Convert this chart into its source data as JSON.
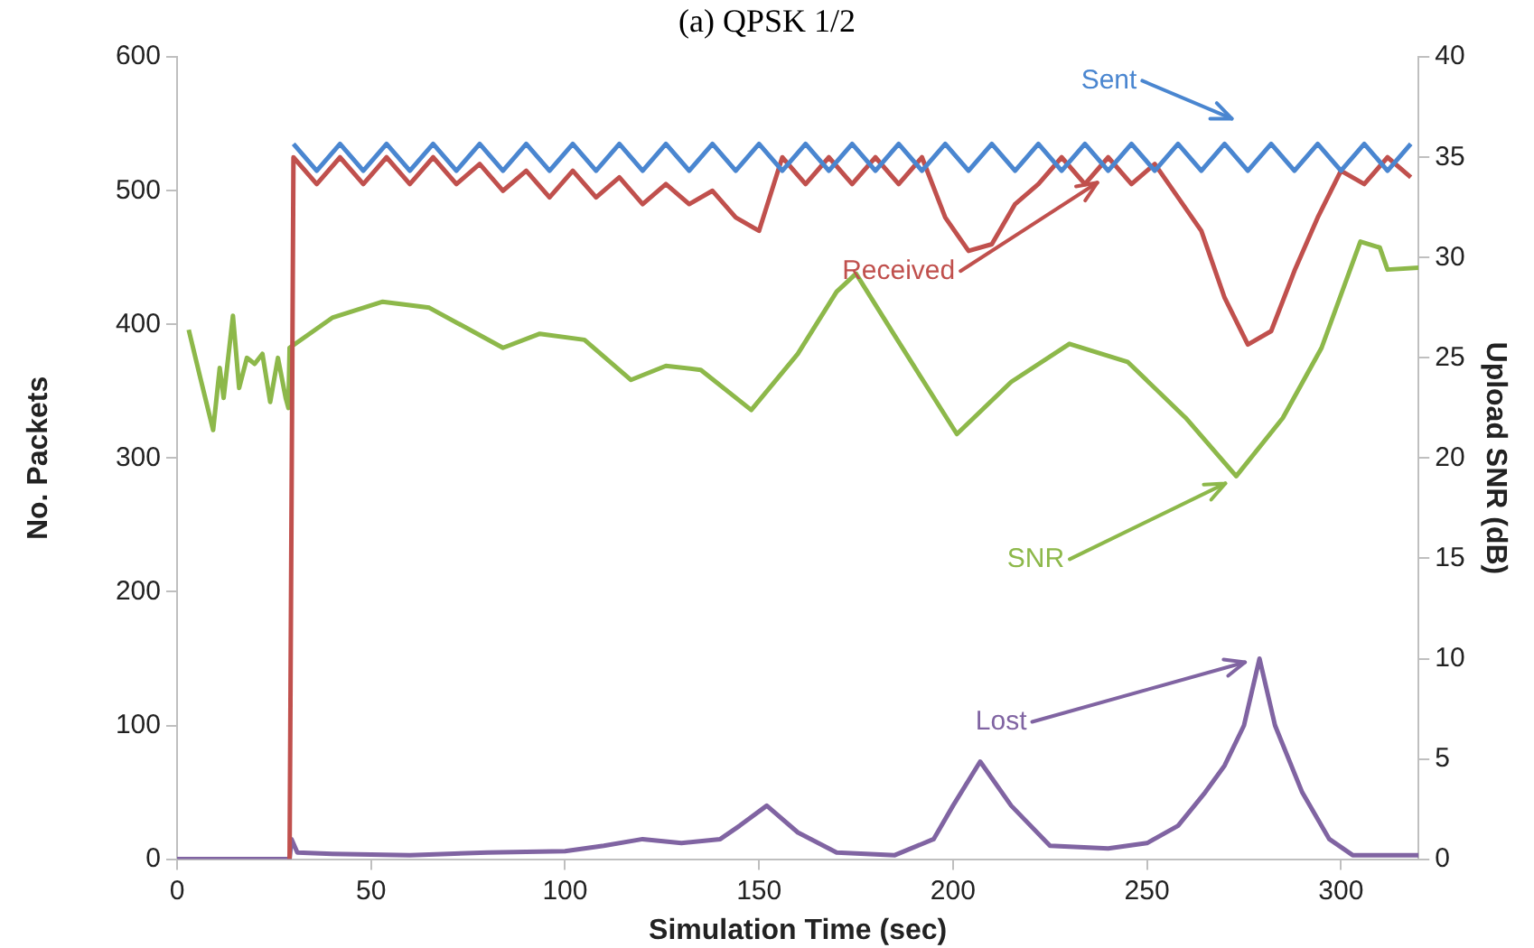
{
  "chart_data": {
    "type": "line",
    "title": "(a) QPSK 1/2",
    "xlabel": "Simulation Time (sec)",
    "ylabel": "No. Packets",
    "y2label": "Upload SNR (dB)",
    "xlim": [
      0,
      320
    ],
    "xticks": [
      0,
      50,
      100,
      150,
      200,
      250,
      300
    ],
    "ylim": [
      0,
      600
    ],
    "yticks": [
      0,
      100,
      200,
      300,
      400,
      500,
      600
    ],
    "y2lim": [
      0,
      40
    ],
    "y2ticks": [
      0,
      5,
      10,
      15,
      20,
      25,
      30,
      35,
      40
    ],
    "grid": false,
    "legend": false,
    "marker": "none",
    "line_style": "solid",
    "series": [
      {
        "name": "Sent",
        "color": "#4a86d0",
        "x": [
          30,
          36,
          42,
          48,
          54,
          60,
          66,
          72,
          78,
          84,
          90,
          96,
          102,
          108,
          114,
          120,
          126,
          132,
          138,
          144,
          150,
          156,
          162,
          168,
          174,
          180,
          186,
          192,
          198,
          204,
          210,
          216,
          222,
          228,
          234,
          240,
          246,
          252,
          258,
          264,
          270,
          276,
          282,
          288,
          294,
          300,
          306,
          312,
          318
        ],
        "values": [
          535,
          515,
          535,
          515,
          535,
          515,
          535,
          515,
          535,
          515,
          535,
          515,
          535,
          515,
          535,
          515,
          535,
          515,
          535,
          515,
          535,
          515,
          535,
          515,
          535,
          515,
          535,
          515,
          535,
          515,
          535,
          515,
          535,
          515,
          535,
          515,
          535,
          515,
          535,
          515,
          535,
          515,
          535,
          515,
          535,
          515,
          535,
          515,
          535
        ]
      },
      {
        "name": "Received",
        "color": "#c0504d",
        "x": [
          29,
          30,
          36,
          42,
          48,
          54,
          60,
          66,
          72,
          78,
          84,
          90,
          96,
          102,
          108,
          114,
          120,
          126,
          132,
          138,
          144,
          150,
          156,
          162,
          168,
          174,
          180,
          186,
          192,
          198,
          204,
          210,
          216,
          222,
          228,
          234,
          240,
          246,
          252,
          258,
          264,
          270,
          276,
          282,
          288,
          294,
          300,
          306,
          312,
          318
        ],
        "values": [
          0,
          525,
          505,
          525,
          505,
          525,
          505,
          525,
          505,
          520,
          500,
          515,
          495,
          515,
          495,
          510,
          490,
          505,
          490,
          500,
          480,
          470,
          525,
          505,
          525,
          505,
          525,
          505,
          525,
          480,
          455,
          460,
          490,
          505,
          525,
          505,
          525,
          505,
          520,
          495,
          470,
          420,
          385,
          395,
          440,
          480,
          515,
          505,
          525,
          510
        ]
      },
      {
        "name": "SNR",
        "color": "#8db84a",
        "axis": "y2",
        "x": [
          3,
          6,
          9.3,
          11,
          12,
          14.4,
          16,
          18,
          20,
          22,
          24,
          26,
          28,
          28.7,
          29,
          40,
          53,
          65,
          84,
          93.5,
          105,
          117,
          126,
          135,
          148,
          160,
          170,
          175,
          185,
          201,
          215,
          230,
          245,
          260,
          273,
          285,
          295,
          305,
          310,
          312,
          320
        ],
        "values": [
          26.4,
          24,
          21.4,
          24.5,
          23,
          27.1,
          23.5,
          25,
          24.7,
          25.2,
          22.8,
          25,
          23,
          22.5,
          25.5,
          27,
          27.8,
          27.5,
          25.5,
          26.2,
          25.9,
          23.9,
          24.6,
          24.4,
          22.4,
          25.2,
          28.3,
          29.2,
          26.1,
          21.2,
          23.8,
          25.7,
          24.8,
          22,
          19.1,
          22,
          25.5,
          30.8,
          30.5,
          29.4,
          29.5
        ]
      },
      {
        "name": "Lost",
        "color": "#8064a2",
        "x": [
          0,
          29,
          29.5,
          31,
          40,
          60,
          80,
          100,
          110,
          120,
          130,
          140,
          145,
          152,
          160,
          170,
          185,
          195,
          200,
          207,
          215,
          225,
          240,
          250,
          258,
          265,
          270,
          275,
          279,
          283,
          290,
          297,
          303,
          320
        ],
        "values": [
          0,
          0,
          15,
          5,
          4,
          3,
          5,
          6,
          10,
          15,
          12,
          15,
          25,
          40,
          20,
          5,
          3,
          15,
          40,
          73,
          40,
          10,
          8,
          12,
          25,
          50,
          70,
          100,
          150,
          100,
          50,
          15,
          3,
          3
        ]
      }
    ]
  }
}
